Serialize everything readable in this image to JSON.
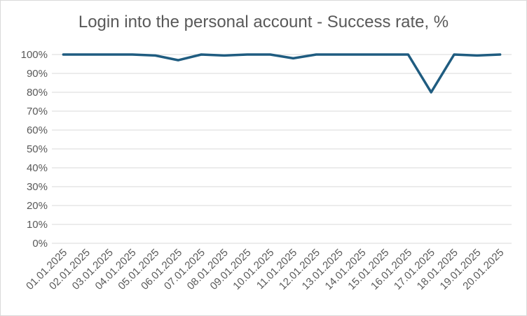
{
  "chart_data": {
    "type": "line",
    "title": "Login into the personal account - Success rate, %",
    "xlabel": "",
    "ylabel": "",
    "categories": [
      "01.01.2025",
      "02.01.2025",
      "03.01.2025",
      "04.01.2025",
      "05.01.2025",
      "06.01.2025",
      "07.01.2025",
      "08.01.2025",
      "09.01.2025",
      "10.01.2025",
      "11.01.2025",
      "12.01.2025",
      "13.01.2025",
      "14.01.2025",
      "15.01.2025",
      "16.01.2025",
      "17.01.2025",
      "18.01.2025",
      "19.01.2025",
      "20.01.2025"
    ],
    "series": [
      {
        "values": [
          100,
          100,
          100,
          100,
          99.5,
          97,
          100,
          99.5,
          100,
          100,
          98,
          100,
          100,
          100,
          100,
          100,
          80,
          100,
          99.5,
          100
        ]
      }
    ],
    "ylim": [
      0,
      100
    ],
    "yticks": [
      0,
      10,
      20,
      30,
      40,
      50,
      60,
      70,
      80,
      90,
      100
    ],
    "ytick_labels": [
      "0%",
      "10%",
      "20%",
      "30%",
      "40%",
      "50%",
      "60%",
      "70%",
      "80%",
      "90%",
      "100%"
    ],
    "grid": true,
    "legend": "none",
    "line_color": "#1f5c80",
    "grid_color": "#d9d9d9"
  }
}
